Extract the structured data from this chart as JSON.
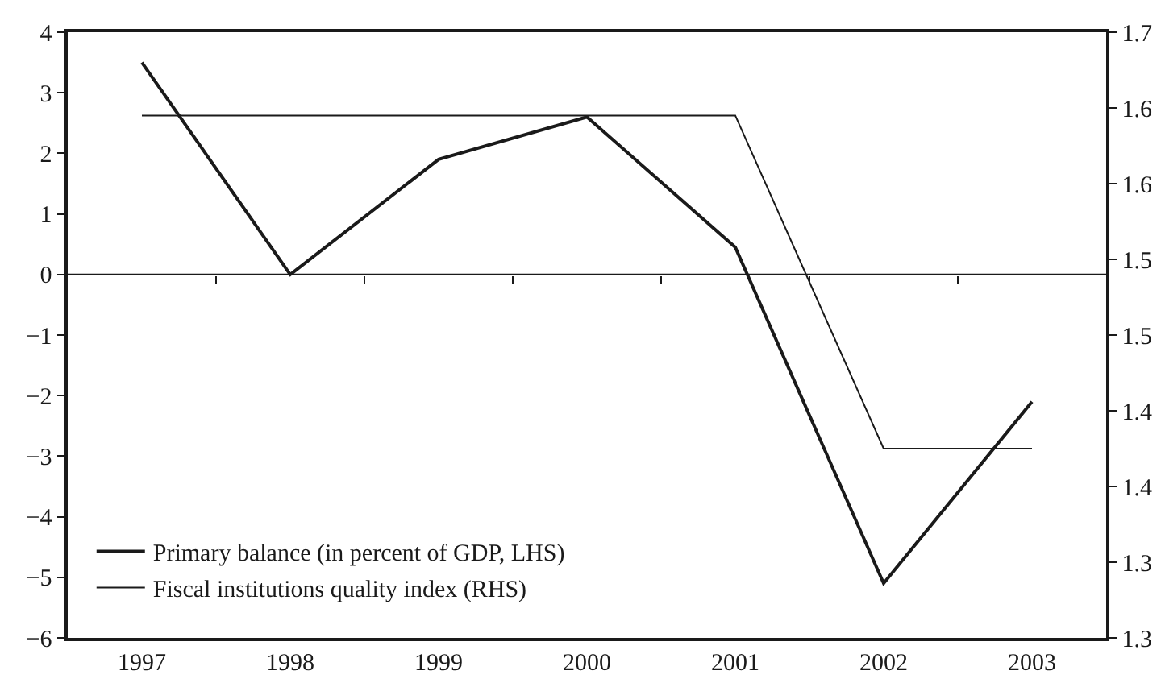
{
  "chart_data": {
    "type": "line",
    "x": [
      1997,
      1998,
      1999,
      2000,
      2001,
      2002,
      2003
    ],
    "series": [
      {
        "name": "Primary balance (in percent of GDP, LHS)",
        "color": "#1a1a1a",
        "values": [
          3.5,
          0,
          1.9,
          2.6,
          0.45,
          -5.1,
          -2.1
        ]
      },
      {
        "name": "Fiscal institutions quality index (RHS)",
        "color": "#1a1a1a",
        "axis": "y2",
        "values": [
          1.645,
          1.645,
          1.645,
          1.645,
          1.645,
          1.425,
          1.425
        ]
      }
    ],
    "xlim": [
      1996.5,
      2003.5
    ],
    "xticks": [
      1997,
      1998,
      1999,
      2000,
      2001,
      2002,
      2003
    ],
    "ylim": [
      -6,
      4
    ],
    "yticks": [
      -6,
      -5,
      -4,
      -3,
      -2,
      -1,
      0,
      1,
      2,
      3,
      4
    ],
    "y2lim": [
      1.3,
      1.7
    ],
    "y2ticks": [
      {
        "value": 1.3,
        "label": "1.3"
      },
      {
        "value": 1.35,
        "label": "1.3"
      },
      {
        "value": 1.4,
        "label": "1.4"
      },
      {
        "value": 1.45,
        "label": "1.4"
      },
      {
        "value": 1.5,
        "label": "1.5"
      },
      {
        "value": 1.55,
        "label": "1.5"
      },
      {
        "value": 1.6,
        "label": "1.6"
      },
      {
        "value": 1.65,
        "label": "1.6"
      },
      {
        "value": 1.7,
        "label": "1.7"
      }
    ],
    "ref_lines": [
      {
        "axis": "y",
        "value": 0,
        "color": "#1a1a1a"
      }
    ],
    "legend": "bottom left",
    "grid": false,
    "marker": "none",
    "line_style": "solid"
  }
}
